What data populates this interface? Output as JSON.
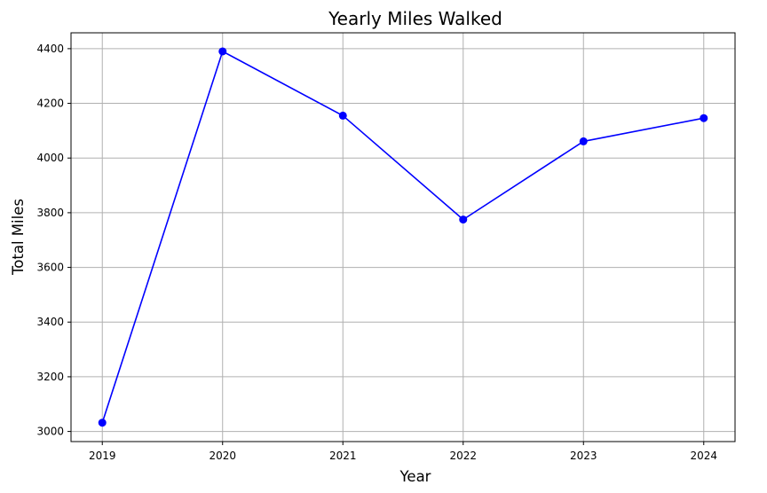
{
  "chart_data": {
    "type": "line",
    "title": "Yearly Miles Walked",
    "xlabel": "Year",
    "ylabel": "Total Miles",
    "x": [
      "2019",
      "2020",
      "2021",
      "2022",
      "2023",
      "2024"
    ],
    "series": [
      {
        "values": [
          3032,
          4390,
          4155,
          3775,
          4061,
          4146
        ]
      }
    ],
    "xlim": [
      2018.74,
      2024.26
    ],
    "ylim": [
      2963,
      4458
    ],
    "yticks": [
      3000,
      3200,
      3400,
      3600,
      3800,
      4000,
      4200,
      4400
    ],
    "grid": true,
    "marker": "circle",
    "colors": {
      "line": "#0000ff",
      "grid": "#b0b0b0",
      "axes": "#000000"
    }
  }
}
